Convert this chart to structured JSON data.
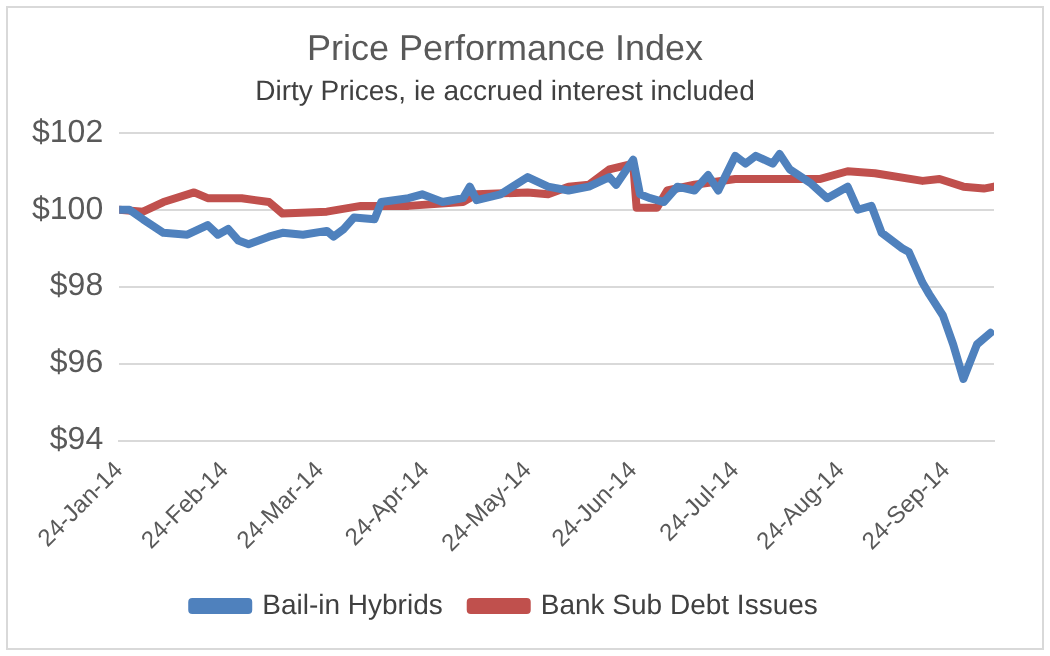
{
  "chart_data": {
    "type": "line",
    "title": "Price Performance Index",
    "subtitle": "Dirty Prices, ie accrued interest included",
    "xlim": [
      "2014-01-24",
      "2014-10-08"
    ],
    "xticks": [
      {
        "value": "2014-01-24",
        "label": "24-Jan-14"
      },
      {
        "value": "2014-02-24",
        "label": "24-Feb-14"
      },
      {
        "value": "2014-03-24",
        "label": "24-Mar-14"
      },
      {
        "value": "2014-04-24",
        "label": "24-Apr-14"
      },
      {
        "value": "2014-05-24",
        "label": "24-May-14"
      },
      {
        "value": "2014-06-24",
        "label": "24-Jun-14"
      },
      {
        "value": "2014-07-24",
        "label": "24-Jul-14"
      },
      {
        "value": "2014-08-24",
        "label": "24-Aug-14"
      },
      {
        "value": "2014-09-24",
        "label": "24-Sep-14"
      }
    ],
    "ylim": [
      94,
      102
    ],
    "yticks": [
      {
        "value": 94,
        "label": "$94"
      },
      {
        "value": 96,
        "label": "$96"
      },
      {
        "value": 98,
        "label": "$98"
      },
      {
        "value": 100,
        "label": "$100"
      },
      {
        "value": 102,
        "label": "$102"
      }
    ],
    "grid": "y",
    "legend": "bottom",
    "marker": "none",
    "line_style": "solid",
    "series": [
      {
        "name": "Bail-in Hybrids",
        "color": "#4f81bd",
        "x": [
          "2014-01-24",
          "2014-01-27",
          "2014-01-31",
          "2014-02-06",
          "2014-02-13",
          "2014-02-19",
          "2014-02-22",
          "2014-02-25",
          "2014-02-28",
          "2014-03-03",
          "2014-03-09",
          "2014-03-13",
          "2014-03-19",
          "2014-03-26",
          "2014-03-28",
          "2014-03-31",
          "2014-04-03",
          "2014-04-09",
          "2014-04-11",
          "2014-04-19",
          "2014-04-23",
          "2014-04-29",
          "2014-05-05",
          "2014-05-07",
          "2014-05-09",
          "2014-05-16",
          "2014-05-24",
          "2014-05-30",
          "2014-06-05",
          "2014-06-11",
          "2014-06-17",
          "2014-06-19",
          "2014-06-24",
          "2014-06-26",
          "2014-06-29",
          "2014-07-03",
          "2014-07-07",
          "2014-07-12",
          "2014-07-16",
          "2014-07-19",
          "2014-07-24",
          "2014-07-27",
          "2014-07-30",
          "2014-08-04",
          "2014-08-06",
          "2014-08-09",
          "2014-08-15",
          "2014-08-20",
          "2014-08-26",
          "2014-08-29",
          "2014-09-02",
          "2014-09-05",
          "2014-09-11",
          "2014-09-13",
          "2014-09-17",
          "2014-09-19",
          "2014-09-23",
          "2014-09-26",
          "2014-09-29",
          "2014-10-03",
          "2014-10-07"
        ],
        "values": [
          100.0,
          100.0,
          99.75,
          99.4,
          99.35,
          99.6,
          99.35,
          99.5,
          99.2,
          99.1,
          99.3,
          99.4,
          99.35,
          99.45,
          99.3,
          99.5,
          99.8,
          99.75,
          100.2,
          100.3,
          100.4,
          100.2,
          100.3,
          100.6,
          100.25,
          100.4,
          100.85,
          100.6,
          100.5,
          100.6,
          100.85,
          100.65,
          101.3,
          100.4,
          100.3,
          100.2,
          100.6,
          100.5,
          100.9,
          100.5,
          101.4,
          101.2,
          101.4,
          101.2,
          101.45,
          101.05,
          100.7,
          100.3,
          100.6,
          100.0,
          100.1,
          99.4,
          99.0,
          98.9,
          98.1,
          97.8,
          97.25,
          96.5,
          95.6,
          96.5,
          96.8
        ]
      },
      {
        "name": "Bank Sub Debt Issues",
        "color": "#c0504d",
        "x": [
          "2014-01-24",
          "2014-01-31",
          "2014-02-06",
          "2014-02-15",
          "2014-02-19",
          "2014-03-01",
          "2014-03-09",
          "2014-03-13",
          "2014-03-26",
          "2014-04-05",
          "2014-04-19",
          "2014-05-05",
          "2014-05-09",
          "2014-05-24",
          "2014-05-30",
          "2014-06-05",
          "2014-06-11",
          "2014-06-17",
          "2014-06-24",
          "2014-06-25",
          "2014-07-01",
          "2014-07-04",
          "2014-07-12",
          "2014-07-24",
          "2014-08-07",
          "2014-08-18",
          "2014-08-26",
          "2014-09-03",
          "2014-09-17",
          "2014-09-22",
          "2014-09-29",
          "2014-10-05",
          "2014-10-08"
        ],
        "values": [
          100.0,
          99.95,
          100.2,
          100.45,
          100.3,
          100.3,
          100.2,
          99.9,
          99.95,
          100.1,
          100.1,
          100.2,
          100.4,
          100.45,
          100.4,
          100.6,
          100.65,
          101.05,
          101.2,
          100.05,
          100.05,
          100.5,
          100.65,
          100.8,
          100.8,
          100.8,
          101.0,
          100.95,
          100.75,
          100.8,
          100.6,
          100.55,
          100.6
        ]
      }
    ]
  }
}
